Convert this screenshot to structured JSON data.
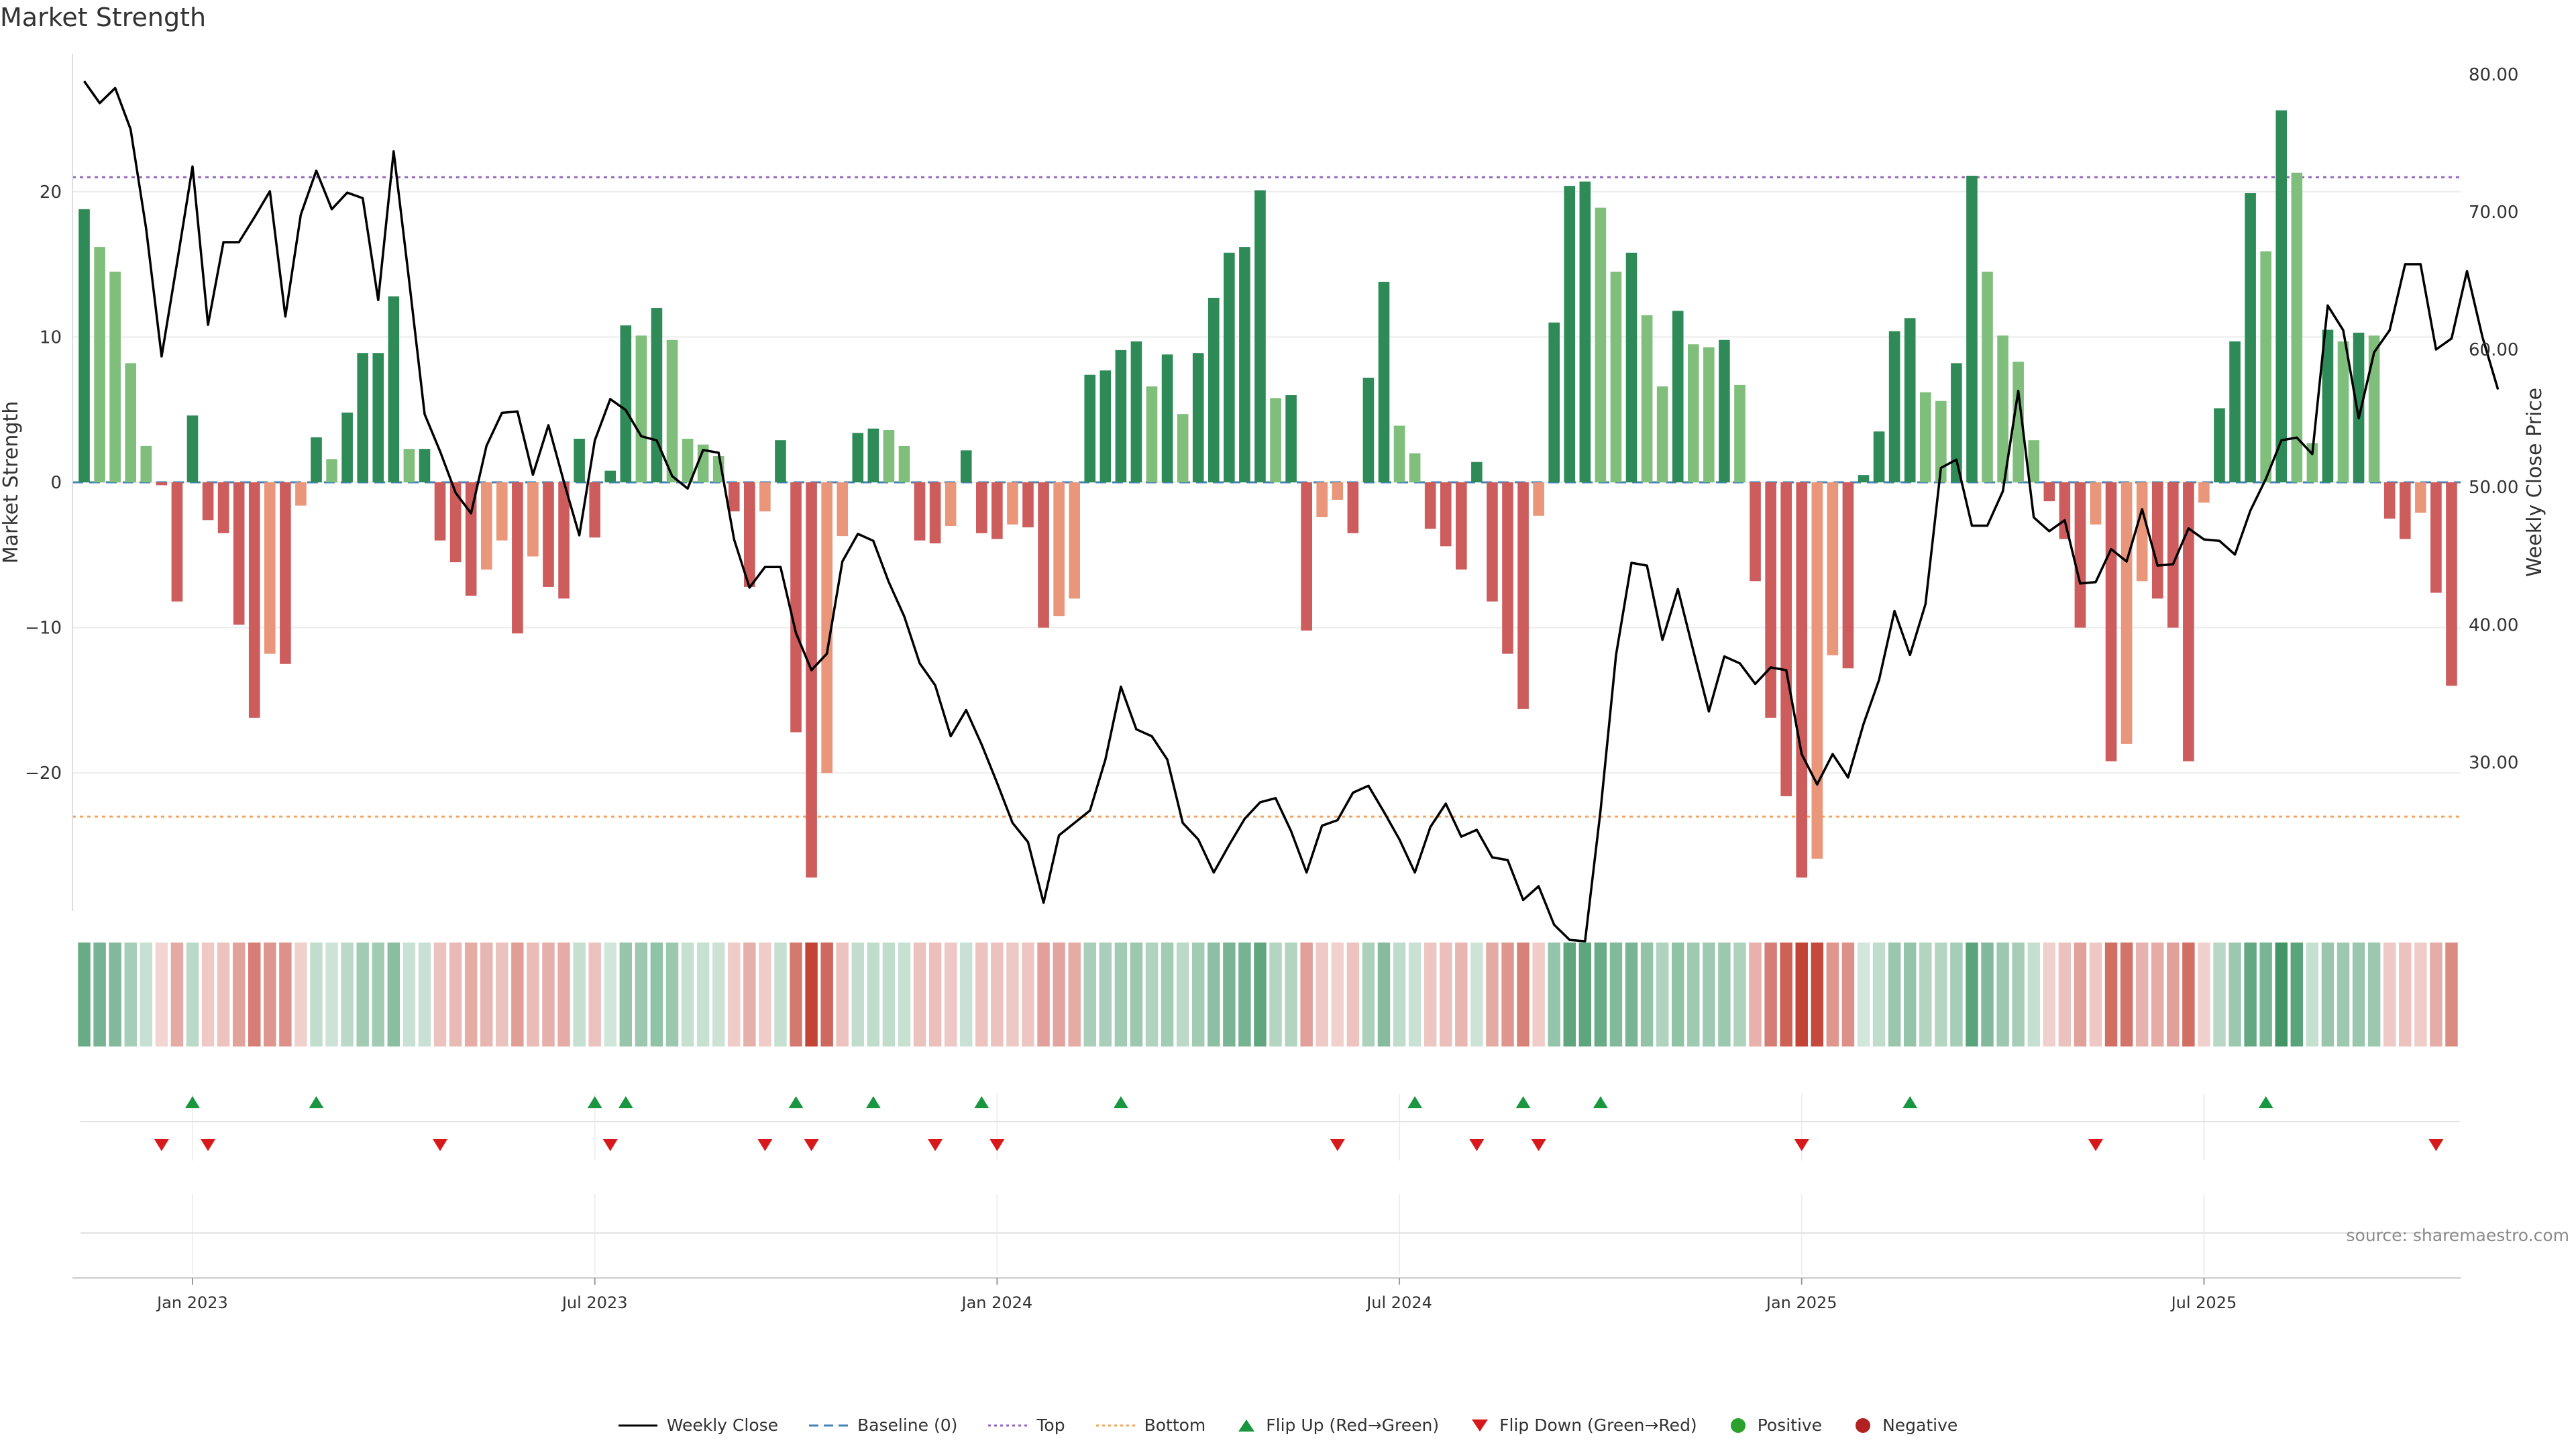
{
  "page": {
    "title": "Market Strength",
    "source": "source: sharemaestro.com"
  },
  "colors": {
    "pos_strong": "#2e8b57",
    "pos_light": "#7fbf7b",
    "neg_strong": "#cd5c5c",
    "neg_light": "#e9967a",
    "line": "#000000",
    "baseline": "#4682b4",
    "top": "#9467bd",
    "bottom": "#f4a460",
    "flip_up": "#1a9641",
    "flip_down": "#d7191c",
    "positive": "#2ca02c",
    "negative": "#b22222"
  },
  "chart_data": {
    "type": "bar",
    "title": "Market Strength",
    "ylabel": "Market Strength",
    "y2label": "Weekly Close Price",
    "ylim": [
      -29.5,
      29.5
    ],
    "y2lim": [
      19.2,
      81.5
    ],
    "yticks": [
      "20",
      "10",
      "0",
      "−10",
      "−20"
    ],
    "y2ticks": [
      "80.00",
      "70.00",
      "60.00",
      "50.00",
      "40.00",
      "30.00"
    ],
    "x_ticks": [
      "Jan 2023",
      "Jul 2023",
      "Jan 2024",
      "Jul 2024",
      "Jan 2025",
      "Jul 2025"
    ],
    "top_line": 21,
    "bottom_line": -23,
    "grid": true,
    "legend_position": "bottom-center",
    "strength": [
      18.8,
      16.2,
      14.5,
      8.2,
      2.5,
      -0.2,
      -8.2,
      4.6,
      -2.6,
      -3.5,
      -9.8,
      -16.2,
      -11.8,
      -12.5,
      -1.6,
      3.1,
      1.6,
      4.8,
      8.9,
      8.9,
      12.8,
      2.3,
      2.3,
      -4.0,
      -5.5,
      -7.8,
      -6.0,
      -4.0,
      -10.4,
      -5.1,
      -7.2,
      -8.0,
      3.0,
      -3.8,
      0.8,
      10.8,
      10.1,
      12.0,
      9.8,
      3.0,
      2.6,
      1.8,
      -2.0,
      -7.2,
      -2.0,
      2.9,
      -17.2,
      -27.2,
      -20.0,
      -3.7,
      3.4,
      3.7,
      3.6,
      2.5,
      -4.0,
      -4.2,
      -3.0,
      2.2,
      -3.5,
      -3.9,
      -2.9,
      -3.1,
      -10.0,
      -9.2,
      -8.0,
      7.4,
      7.7,
      9.1,
      9.7,
      6.6,
      8.8,
      4.7,
      8.9,
      12.7,
      15.8,
      16.2,
      20.1,
      5.8,
      6.0,
      -10.2,
      -2.4,
      -1.2,
      -3.5,
      7.2,
      13.8,
      3.9,
      2.0,
      -3.2,
      -4.4,
      -6.0,
      1.4,
      -8.2,
      -11.8,
      -15.6,
      -2.3,
      11.0,
      20.4,
      20.7,
      18.9,
      14.5,
      15.8,
      11.5,
      6.6,
      11.8,
      9.5,
      9.3,
      9.8,
      6.7,
      -6.8,
      -16.2,
      -21.6,
      -27.2,
      -25.9,
      -11.9,
      -12.8,
      0.5,
      3.5,
      10.4,
      11.3,
      6.2,
      5.6,
      8.2,
      21.1,
      14.5,
      10.1,
      8.3,
      2.9,
      -1.3,
      -3.9,
      -10.0,
      -2.9,
      -19.2,
      -18.0,
      -6.8,
      -8.0,
      -10.0,
      -19.2,
      -1.4,
      5.1,
      9.7,
      19.9,
      15.9,
      25.6,
      21.3,
      2.7,
      10.5,
      9.7,
      10.3,
      10.1,
      -2.5,
      -3.9,
      -2.1,
      -7.6,
      -14.0
    ],
    "weekly_close": [
      79.5,
      77.9,
      79.0,
      76.0,
      68.8,
      59.5,
      66.3,
      73.3,
      61.8,
      67.8,
      67.8,
      69.6,
      71.5,
      62.4,
      69.8,
      73.0,
      70.2,
      71.4,
      71.0,
      63.6,
      74.4,
      65.0,
      55.3,
      52.6,
      49.6,
      48.1,
      53.0,
      55.4,
      55.5,
      50.9,
      54.5,
      50.4,
      46.5,
      53.4,
      56.4,
      55.6,
      53.7,
      53.4,
      50.8,
      49.9,
      52.7,
      52.5,
      46.2,
      42.7,
      44.2,
      44.2,
      39.4,
      36.7,
      37.9,
      44.6,
      46.6,
      46.1,
      43.1,
      40.6,
      37.2,
      35.6,
      31.9,
      33.8,
      31.3,
      28.5,
      25.6,
      24.2,
      19.8,
      24.7,
      25.6,
      26.5,
      30.2,
      35.5,
      32.4,
      31.9,
      30.2,
      25.6,
      24.4,
      22.0,
      24.0,
      25.9,
      27.1,
      27.4,
      25.0,
      22.0,
      25.4,
      25.8,
      27.8,
      28.3,
      26.4,
      24.4,
      22.0,
      25.3,
      27.0,
      24.6,
      25.1,
      23.1,
      22.9,
      20.0,
      21.0,
      18.2,
      17.1,
      17.0,
      26.5,
      37.8,
      44.5,
      44.3,
      38.9,
      42.6,
      38.1,
      33.7,
      37.7,
      37.2,
      35.7,
      36.9,
      36.7,
      30.6,
      28.4,
      30.6,
      28.9,
      32.8,
      36.0,
      41.0,
      37.8,
      41.5,
      51.4,
      52.0,
      47.2,
      47.2,
      49.7,
      57.0,
      47.8,
      46.8,
      47.6,
      43.0,
      43.1,
      45.5,
      44.6,
      48.4,
      44.3,
      44.4,
      47.0,
      46.2,
      46.1,
      45.1,
      48.3,
      50.6,
      53.4,
      53.6,
      52.4,
      63.2,
      61.4,
      55.0,
      59.8,
      61.4,
      66.2,
      66.2,
      60.0,
      60.8,
      65.7,
      60.9,
      57.1
    ],
    "flip_up_weeks": [
      7,
      15,
      33,
      35,
      46,
      51,
      58,
      67,
      86,
      93,
      98,
      118,
      141
    ],
    "flip_down_weeks": [
      5,
      8,
      23,
      34,
      44,
      47,
      55,
      59,
      81,
      90,
      94,
      111,
      130,
      152
    ]
  },
  "legend": {
    "weekly_close": "Weekly Close",
    "baseline": "Baseline (0)",
    "top": "Top",
    "bottom": "Bottom",
    "flip_up": "Flip Up (Red→Green)",
    "flip_down": "Flip Down (Green→Red)",
    "positive": "Positive",
    "negative": "Negative"
  }
}
